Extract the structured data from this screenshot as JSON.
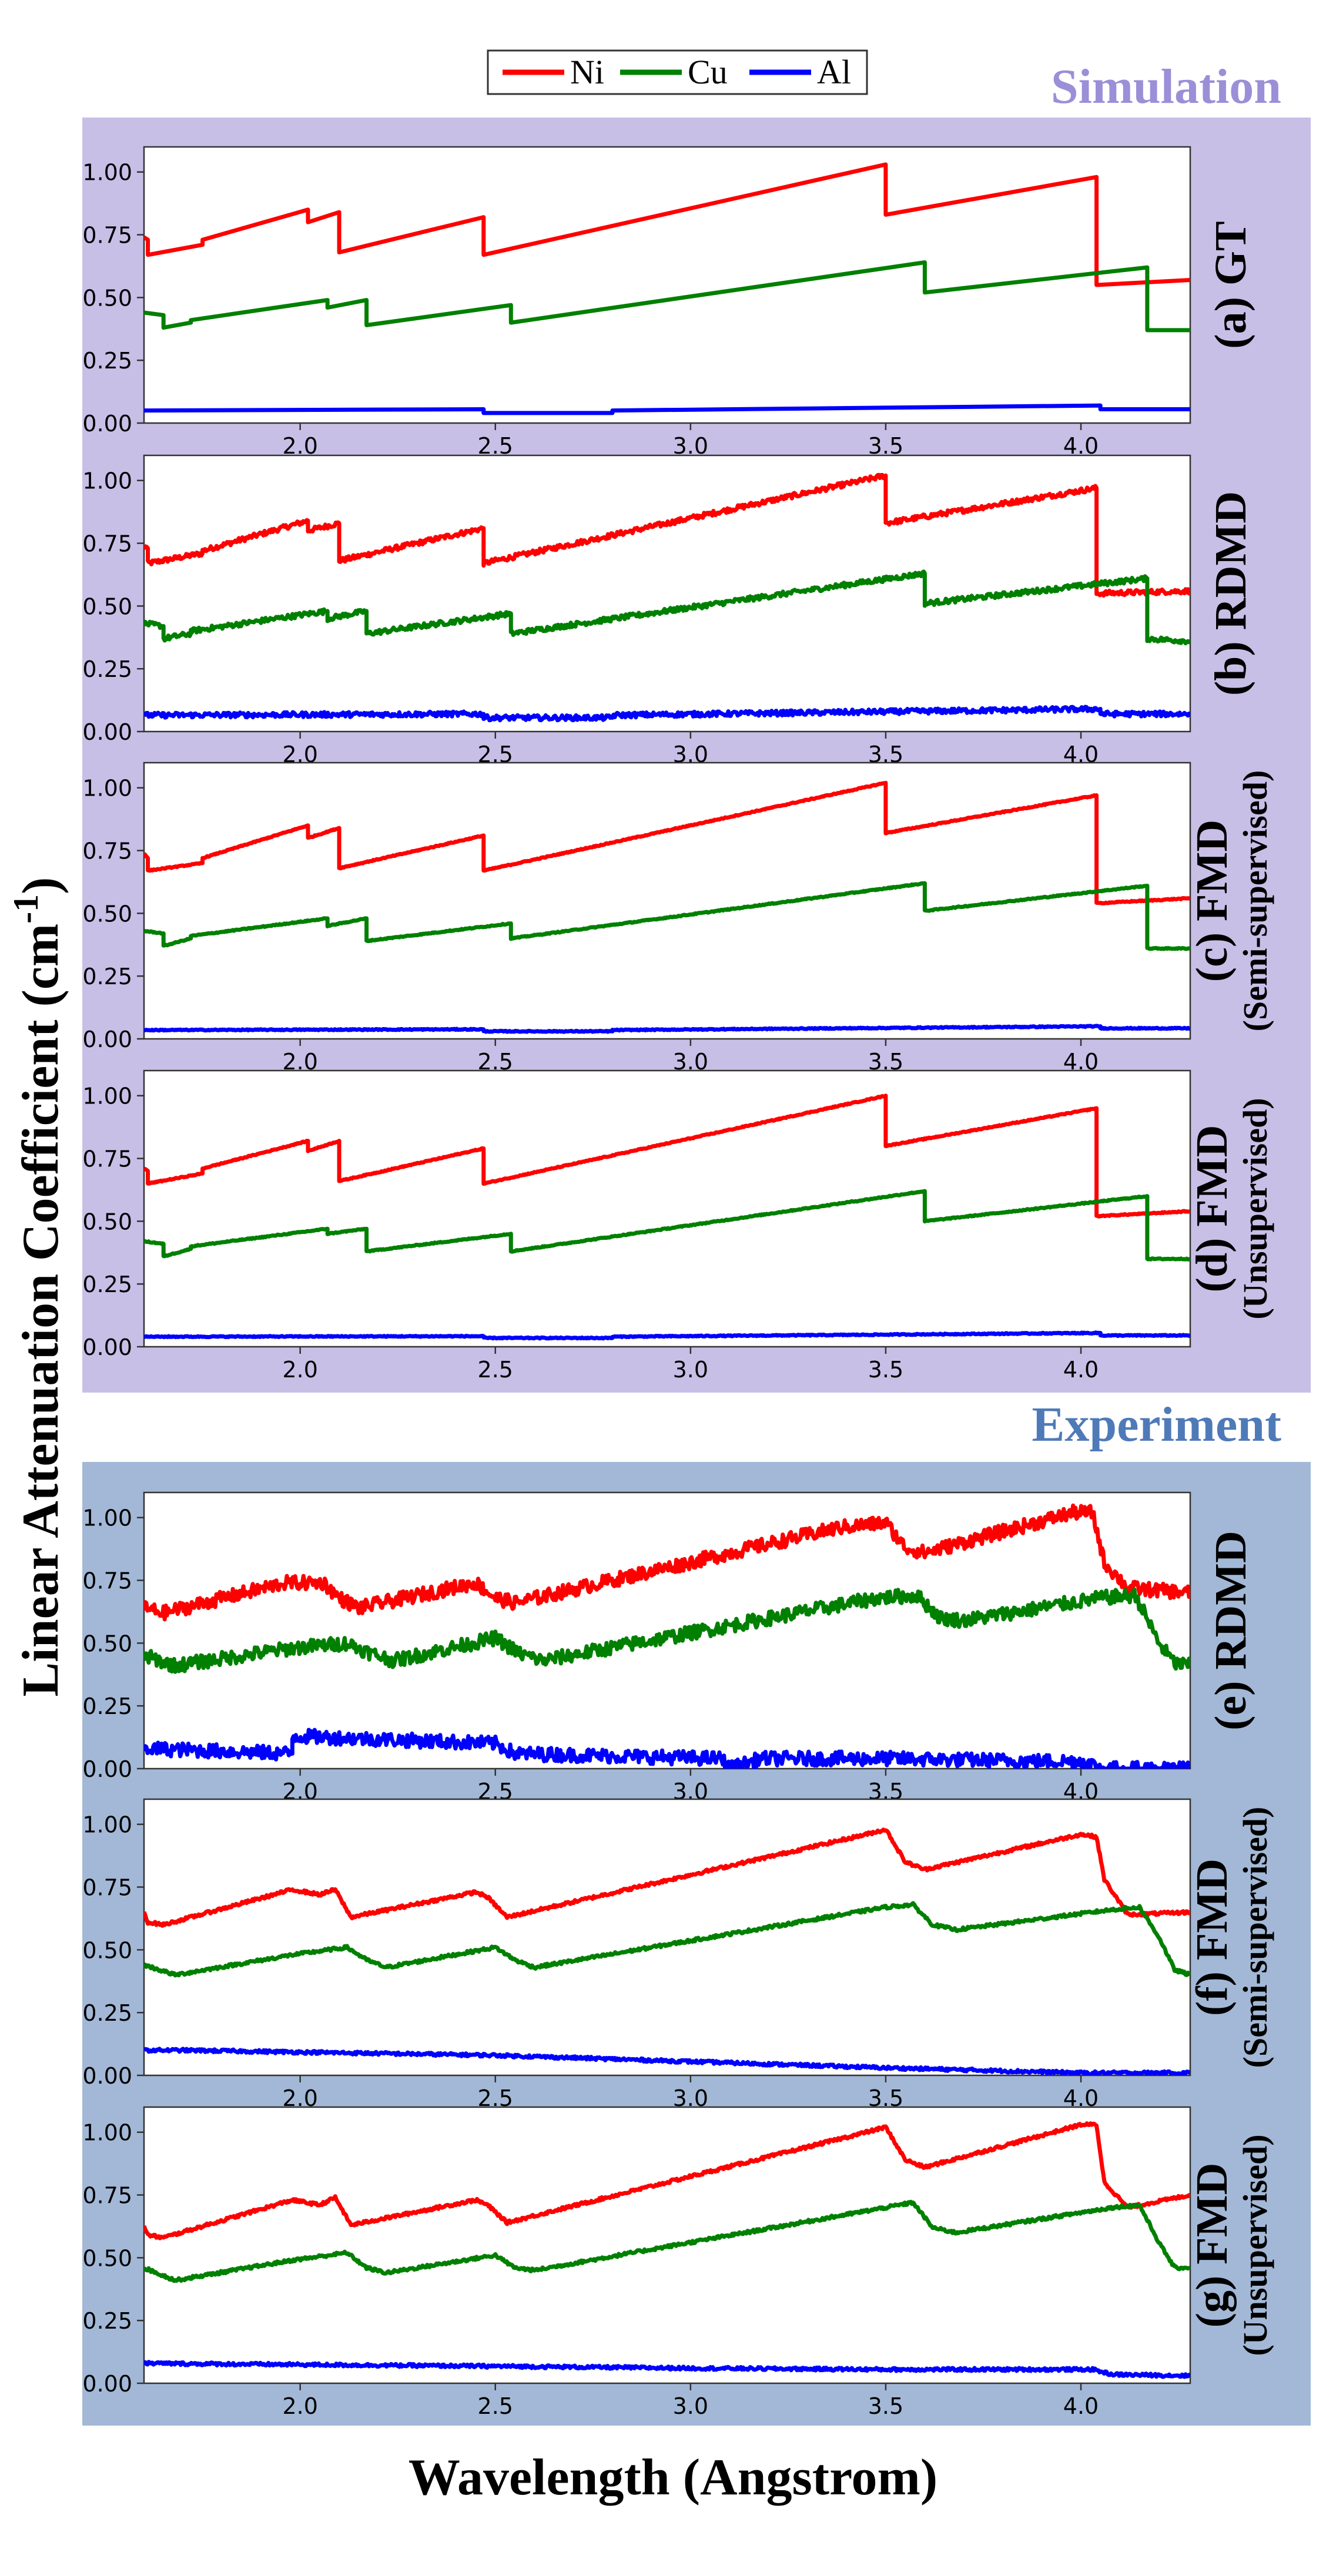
{
  "legend": [
    {
      "label": "Ni",
      "color": "#ff0000"
    },
    {
      "label": "Cu",
      "color": "#008000"
    },
    {
      "label": "Al",
      "color": "#0000ff"
    }
  ],
  "section_simulation": {
    "label": "Simulation",
    "bg": "#c8bfe7",
    "text_color": "#9b8fd8"
  },
  "section_experiment": {
    "label": "Experiment",
    "bg": "#a3b8d6",
    "text_color": "#4f7ab8"
  },
  "y_axis_title_main": "Linear Attenuation Coefficient (cm",
  "y_axis_title_sup": "-1",
  "y_axis_title_close": ")",
  "x_axis_title": "Wavelength (Angstrom)",
  "chart_data": [
    {
      "type": "line",
      "panel": "(a) GT",
      "label_line1": "(a)  GT",
      "label_line2": "",
      "section": "simulation",
      "xlim": [
        1.6,
        4.28
      ],
      "ylim": [
        0.0,
        1.1
      ],
      "xticks": [
        "2.0",
        "2.5",
        "3.0",
        "3.5",
        "4.0"
      ],
      "yticks": [
        "0.00",
        "0.25",
        "0.50",
        "0.75",
        "1.00"
      ],
      "noise": 0.0,
      "series": [
        {
          "name": "Ni",
          "color": "#ff0000",
          "x": [
            1.6,
            1.61,
            1.61,
            1.75,
            1.75,
            2.02,
            2.02,
            2.1,
            2.1,
            2.47,
            2.47,
            3.5,
            3.5,
            4.04,
            4.04,
            4.28
          ],
          "y": [
            0.74,
            0.73,
            0.67,
            0.71,
            0.73,
            0.85,
            0.8,
            0.84,
            0.68,
            0.82,
            0.67,
            1.03,
            0.83,
            0.98,
            0.55,
            0.57
          ]
        },
        {
          "name": "Cu",
          "color": "#008000",
          "x": [
            1.6,
            1.65,
            1.65,
            1.72,
            1.72,
            2.07,
            2.07,
            2.17,
            2.17,
            2.54,
            2.54,
            3.6,
            3.6,
            4.17,
            4.17,
            4.28
          ],
          "y": [
            0.44,
            0.43,
            0.38,
            0.4,
            0.41,
            0.49,
            0.46,
            0.49,
            0.39,
            0.47,
            0.4,
            0.64,
            0.52,
            0.62,
            0.37,
            0.37
          ]
        },
        {
          "name": "Al",
          "color": "#0000ff",
          "x": [
            1.6,
            2.47,
            2.47,
            2.8,
            2.8,
            4.05,
            4.05,
            4.28
          ],
          "y": [
            0.05,
            0.055,
            0.04,
            0.04,
            0.05,
            0.07,
            0.055,
            0.055
          ]
        }
      ]
    },
    {
      "type": "line",
      "panel": "(b) RDMD",
      "label_line1": "(b)  RDMD",
      "label_line2": "",
      "section": "simulation",
      "xlim": [
        1.6,
        4.28
      ],
      "ylim": [
        0.0,
        1.1
      ],
      "xticks": [
        "2.0",
        "2.5",
        "3.0",
        "3.5",
        "4.0"
      ],
      "yticks": [
        "0.00",
        "0.25",
        "0.50",
        "0.75",
        "1.00"
      ],
      "noise": 0.01,
      "series": [
        {
          "name": "Ni",
          "color": "#ff0000",
          "x": [
            1.6,
            1.61,
            1.61,
            1.75,
            1.75,
            2.02,
            2.02,
            2.1,
            2.1,
            2.47,
            2.47,
            3.5,
            3.5,
            4.04,
            4.04,
            4.28
          ],
          "y": [
            0.74,
            0.73,
            0.67,
            0.71,
            0.72,
            0.84,
            0.8,
            0.83,
            0.68,
            0.81,
            0.67,
            1.02,
            0.83,
            0.97,
            0.55,
            0.56
          ]
        },
        {
          "name": "Cu",
          "color": "#008000",
          "x": [
            1.6,
            1.65,
            1.65,
            1.72,
            1.72,
            2.07,
            2.07,
            2.17,
            2.17,
            2.54,
            2.54,
            3.6,
            3.6,
            4.17,
            4.17,
            4.28
          ],
          "y": [
            0.43,
            0.42,
            0.37,
            0.39,
            0.4,
            0.48,
            0.45,
            0.48,
            0.39,
            0.47,
            0.39,
            0.63,
            0.51,
            0.61,
            0.37,
            0.36
          ]
        },
        {
          "name": "Al",
          "color": "#0000ff",
          "x": [
            1.6,
            2.47,
            2.47,
            2.8,
            2.8,
            4.05,
            4.05,
            4.28
          ],
          "y": [
            0.065,
            0.07,
            0.055,
            0.055,
            0.065,
            0.09,
            0.07,
            0.07
          ]
        }
      ]
    },
    {
      "type": "line",
      "panel": "(c) FMD (Semi-supervised)",
      "label_line1": "(c)  FMD",
      "label_line2": "(Semi-supervised)",
      "section": "simulation",
      "xlim": [
        1.6,
        4.28
      ],
      "ylim": [
        0.0,
        1.1
      ],
      "xticks": [
        "2.0",
        "2.5",
        "3.0",
        "3.5",
        "4.0"
      ],
      "yticks": [
        "0.00",
        "0.25",
        "0.50",
        "0.75",
        "1.00"
      ],
      "noise": 0.002,
      "series": [
        {
          "name": "Ni",
          "color": "#ff0000",
          "x": [
            1.6,
            1.61,
            1.61,
            1.75,
            1.75,
            2.02,
            2.02,
            2.1,
            2.1,
            2.47,
            2.47,
            3.5,
            3.5,
            4.04,
            4.04,
            4.28
          ],
          "y": [
            0.74,
            0.72,
            0.67,
            0.7,
            0.72,
            0.85,
            0.8,
            0.84,
            0.68,
            0.81,
            0.67,
            1.02,
            0.82,
            0.97,
            0.54,
            0.56
          ]
        },
        {
          "name": "Cu",
          "color": "#008000",
          "x": [
            1.6,
            1.65,
            1.65,
            1.72,
            1.72,
            2.07,
            2.07,
            2.17,
            2.17,
            2.54,
            2.54,
            3.6,
            3.6,
            4.17,
            4.17,
            4.28
          ],
          "y": [
            0.43,
            0.42,
            0.37,
            0.4,
            0.41,
            0.48,
            0.45,
            0.48,
            0.39,
            0.46,
            0.4,
            0.62,
            0.51,
            0.61,
            0.36,
            0.36
          ]
        },
        {
          "name": "Al",
          "color": "#0000ff",
          "x": [
            1.6,
            2.47,
            2.47,
            2.8,
            2.8,
            4.05,
            4.05,
            4.28
          ],
          "y": [
            0.035,
            0.038,
            0.03,
            0.03,
            0.035,
            0.05,
            0.042,
            0.042
          ]
        }
      ]
    },
    {
      "type": "line",
      "panel": "(d) FMD (Unsupervised)",
      "label_line1": "(d)  FMD",
      "label_line2": "(Unsupervised)",
      "section": "simulation",
      "xlim": [
        1.6,
        4.28
      ],
      "ylim": [
        0.0,
        1.1
      ],
      "xticks": [
        "2.0",
        "2.5",
        "3.0",
        "3.5",
        "4.0"
      ],
      "yticks": [
        "0.00",
        "0.25",
        "0.50",
        "0.75",
        "1.00"
      ],
      "noise": 0.002,
      "series": [
        {
          "name": "Ni",
          "color": "#ff0000",
          "x": [
            1.6,
            1.61,
            1.61,
            1.75,
            1.75,
            2.02,
            2.02,
            2.1,
            2.1,
            2.47,
            2.47,
            3.5,
            3.5,
            4.04,
            4.04,
            4.28
          ],
          "y": [
            0.71,
            0.7,
            0.65,
            0.69,
            0.71,
            0.82,
            0.78,
            0.82,
            0.66,
            0.79,
            0.65,
            1.0,
            0.8,
            0.95,
            0.52,
            0.54
          ]
        },
        {
          "name": "Cu",
          "color": "#008000",
          "x": [
            1.6,
            1.65,
            1.65,
            1.72,
            1.72,
            2.07,
            2.07,
            2.17,
            2.17,
            2.54,
            2.54,
            3.6,
            3.6,
            4.17,
            4.17,
            4.28
          ],
          "y": [
            0.42,
            0.41,
            0.36,
            0.39,
            0.4,
            0.47,
            0.45,
            0.47,
            0.38,
            0.45,
            0.38,
            0.62,
            0.5,
            0.6,
            0.35,
            0.35
          ]
        },
        {
          "name": "Al",
          "color": "#0000ff",
          "x": [
            1.6,
            2.47,
            2.47,
            2.8,
            2.8,
            4.05,
            4.05,
            4.28
          ],
          "y": [
            0.04,
            0.042,
            0.035,
            0.035,
            0.04,
            0.055,
            0.045,
            0.045
          ]
        }
      ]
    },
    {
      "type": "line",
      "panel": "(e) RDMD",
      "label_line1": "(e)  RDMD",
      "label_line2": "",
      "section": "experiment",
      "xlim": [
        1.6,
        4.28
      ],
      "ylim": [
        0.0,
        1.1
      ],
      "xticks": [
        "2.0",
        "2.5",
        "3.0",
        "3.5",
        "4.0"
      ],
      "yticks": [
        "0.00",
        "0.25",
        "0.50",
        "0.75",
        "1.00"
      ],
      "noise": 0.028,
      "series": [
        {
          "name": "Ni",
          "color": "#ff0000",
          "x": [
            1.6,
            1.65,
            1.96,
            2.06,
            2.1,
            2.15,
            2.45,
            2.5,
            2.55,
            3.38,
            3.5,
            3.55,
            3.6,
            3.98,
            4.03,
            4.06,
            4.12,
            4.28
          ],
          "y": [
            0.64,
            0.62,
            0.74,
            0.74,
            0.68,
            0.64,
            0.74,
            0.68,
            0.66,
            0.96,
            0.98,
            0.88,
            0.86,
            1.02,
            1.02,
            0.82,
            0.72,
            0.7
          ]
        },
        {
          "name": "Cu",
          "color": "#008000",
          "x": [
            1.6,
            1.68,
            1.98,
            2.12,
            2.18,
            2.24,
            2.5,
            2.56,
            2.62,
            3.48,
            3.58,
            3.64,
            3.7,
            4.05,
            4.14,
            4.2,
            4.24,
            4.28
          ],
          "y": [
            0.45,
            0.41,
            0.48,
            0.5,
            0.46,
            0.43,
            0.52,
            0.46,
            0.43,
            0.68,
            0.69,
            0.6,
            0.59,
            0.68,
            0.69,
            0.5,
            0.42,
            0.41
          ]
        },
        {
          "name": "Al",
          "color": "#0000ff",
          "x": [
            1.6,
            1.98,
            1.98,
            2.5,
            2.55,
            3.08,
            3.1,
            3.18,
            3.5,
            3.9,
            4.0,
            4.06,
            4.28
          ],
          "y": [
            0.08,
            0.06,
            0.13,
            0.1,
            0.06,
            0.04,
            0.0,
            0.04,
            0.04,
            0.03,
            0.03,
            0.0,
            0.0
          ]
        }
      ]
    },
    {
      "type": "line",
      "panel": "(f) FMD (Semi-supervised)",
      "label_line1": "(f)  FMD",
      "label_line2": "(Semi-supervised)",
      "section": "experiment",
      "xlim": [
        1.6,
        4.28
      ],
      "ylim": [
        0.0,
        1.1
      ],
      "xticks": [
        "2.0",
        "2.5",
        "3.0",
        "3.5",
        "4.0"
      ],
      "yticks": [
        "0.00",
        "0.25",
        "0.50",
        "0.75",
        "1.00"
      ],
      "noise": 0.006,
      "series": [
        {
          "name": "Ni",
          "color": "#ff0000",
          "x": [
            1.6,
            1.61,
            1.65,
            1.98,
            2.05,
            2.09,
            2.13,
            2.45,
            2.48,
            2.53,
            3.45,
            3.5,
            3.55,
            3.6,
            4.0,
            4.04,
            4.06,
            4.12,
            4.28
          ],
          "y": [
            0.65,
            0.61,
            0.6,
            0.74,
            0.72,
            0.74,
            0.63,
            0.73,
            0.71,
            0.63,
            0.96,
            0.98,
            0.85,
            0.82,
            0.96,
            0.95,
            0.78,
            0.64,
            0.65
          ]
        },
        {
          "name": "Cu",
          "color": "#008000",
          "x": [
            1.6,
            1.68,
            1.98,
            2.12,
            2.17,
            2.22,
            2.5,
            2.55,
            2.6,
            3.5,
            3.57,
            3.62,
            3.68,
            4.08,
            4.15,
            4.2,
            4.24,
            4.28
          ],
          "y": [
            0.44,
            0.4,
            0.48,
            0.51,
            0.46,
            0.43,
            0.51,
            0.46,
            0.43,
            0.67,
            0.68,
            0.6,
            0.58,
            0.66,
            0.67,
            0.55,
            0.42,
            0.4
          ]
        },
        {
          "name": "Al",
          "color": "#0000ff",
          "x": [
            1.6,
            1.7,
            2.5,
            3.0,
            3.5,
            4.0,
            4.28
          ],
          "y": [
            0.1,
            0.1,
            0.08,
            0.055,
            0.03,
            0.01,
            0.01
          ]
        }
      ]
    },
    {
      "type": "line",
      "panel": "(g) FMD (Unsupervised)",
      "label_line1": "(g)  FMD",
      "label_line2": "(Unsupervised)",
      "section": "experiment",
      "xlim": [
        1.6,
        4.28
      ],
      "ylim": [
        0.0,
        1.1
      ],
      "xticks": [
        "2.0",
        "2.5",
        "3.0",
        "3.5",
        "4.0"
      ],
      "yticks": [
        "0.00",
        "0.25",
        "0.50",
        "0.75",
        "1.00"
      ],
      "noise": 0.006,
      "series": [
        {
          "name": "Ni",
          "color": "#ff0000",
          "x": [
            1.6,
            1.61,
            1.65,
            1.98,
            2.05,
            2.09,
            2.13,
            2.45,
            2.48,
            2.53,
            3.45,
            3.5,
            3.55,
            3.6,
            4.0,
            4.04,
            4.06,
            4.12,
            4.28
          ],
          "y": [
            0.63,
            0.59,
            0.58,
            0.73,
            0.71,
            0.74,
            0.63,
            0.73,
            0.71,
            0.64,
            1.0,
            1.02,
            0.89,
            0.86,
            1.03,
            1.03,
            0.8,
            0.7,
            0.75
          ]
        },
        {
          "name": "Cu",
          "color": "#008000",
          "x": [
            1.6,
            1.68,
            1.98,
            2.12,
            2.17,
            2.22,
            2.5,
            2.55,
            2.6,
            3.5,
            3.57,
            3.62,
            3.68,
            4.08,
            4.15,
            4.2,
            4.24,
            4.28
          ],
          "y": [
            0.46,
            0.41,
            0.49,
            0.52,
            0.46,
            0.44,
            0.51,
            0.46,
            0.45,
            0.7,
            0.72,
            0.62,
            0.6,
            0.7,
            0.71,
            0.56,
            0.46,
            0.46
          ]
        },
        {
          "name": "Al",
          "color": "#0000ff",
          "x": [
            1.6,
            1.7,
            2.5,
            3.0,
            3.5,
            4.03,
            4.08,
            4.28
          ],
          "y": [
            0.08,
            0.078,
            0.068,
            0.06,
            0.055,
            0.055,
            0.035,
            0.03
          ]
        }
      ]
    }
  ]
}
